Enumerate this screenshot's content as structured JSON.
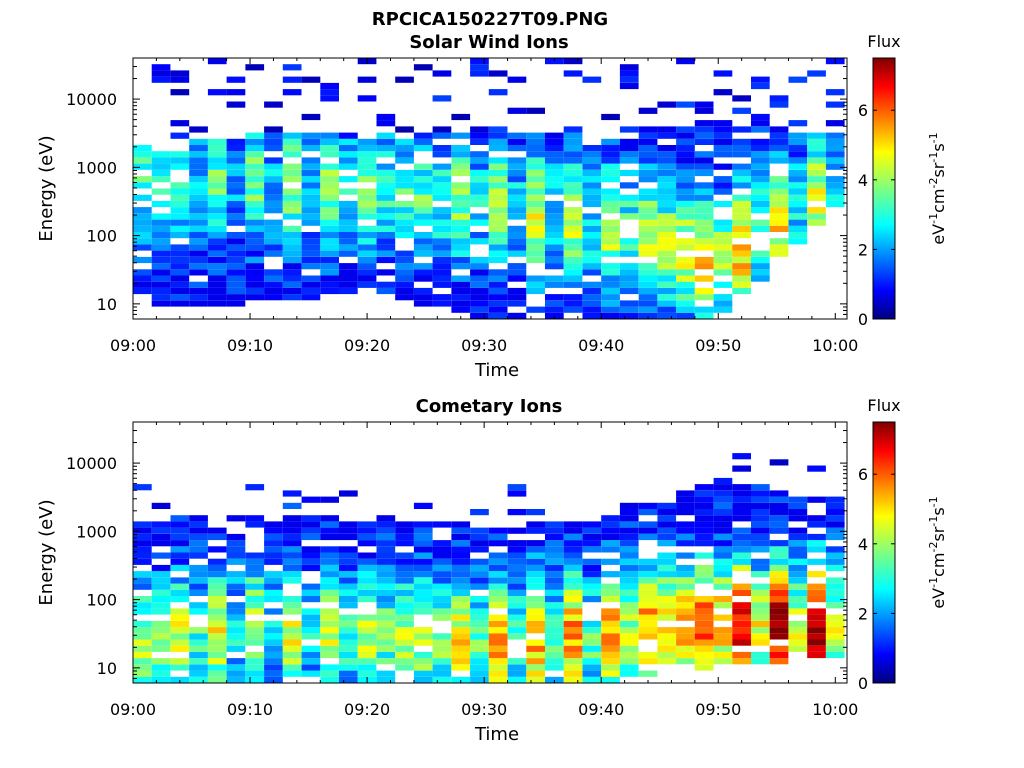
{
  "figure": {
    "filename": "RPCICA150227T09.PNG"
  },
  "chart_data": [
    {
      "type": "heatmap",
      "title": "Solar Wind Ions",
      "xlabel": "Time",
      "ylabel": "Energy (eV)",
      "x_range": [
        "09:00",
        "10:01"
      ],
      "x_ticks": [
        "09:00",
        "09:10",
        "09:20",
        "09:30",
        "09:40",
        "09:50",
        "10:00"
      ],
      "y_scale": "log",
      "y_range": [
        6,
        40000
      ],
      "y_ticks": [
        {
          "value": 10,
          "label": "10"
        },
        {
          "value": 100,
          "label": "100"
        },
        {
          "value": 1000,
          "label": "1000"
        },
        {
          "value": 10000,
          "label": "10000"
        }
      ],
      "colorbar": {
        "label_title": "Flux",
        "unit": "eV-1cm-2sr-1s-1",
        "range": [
          0,
          7.5
        ],
        "ticks": [
          0,
          2,
          4,
          6
        ],
        "colormap": "jet"
      },
      "profile": [
        {
          "t": "09:00",
          "lo": 10,
          "hi": 2000,
          "peak_e": 700,
          "peak_flux": 3.0
        },
        {
          "t": "09:10",
          "lo": 10,
          "hi": 3000,
          "peak_e": 600,
          "peak_flux": 2.8
        },
        {
          "t": "09:20",
          "lo": 15,
          "hi": 3000,
          "peak_e": 500,
          "peak_flux": 3.2
        },
        {
          "t": "09:30",
          "lo": 6,
          "hi": 3000,
          "peak_e": 300,
          "peak_flux": 3.4
        },
        {
          "t": "09:40",
          "lo": 6,
          "hi": 3000,
          "peak_e": 150,
          "peak_flux": 3.6
        },
        {
          "t": "09:50",
          "lo": 6,
          "hi": 5000,
          "peak_e": 40,
          "peak_flux": 5.2
        },
        {
          "t": "10:00",
          "lo": 250,
          "hi": 3000,
          "peak_e": 600,
          "peak_flux": 3.2
        }
      ],
      "note": "sparse low-flux (blue) counts scattered up to ~40000 eV throughout"
    },
    {
      "type": "heatmap",
      "title": "Cometary Ions",
      "xlabel": "Time",
      "ylabel": "Energy (eV)",
      "x_range": [
        "09:00",
        "10:01"
      ],
      "x_ticks": [
        "09:00",
        "09:10",
        "09:20",
        "09:30",
        "09:40",
        "09:50",
        "10:00"
      ],
      "y_scale": "log",
      "y_range": [
        6,
        40000
      ],
      "y_ticks": [
        {
          "value": 10,
          "label": "10"
        },
        {
          "value": 100,
          "label": "100"
        },
        {
          "value": 1000,
          "label": "1000"
        },
        {
          "value": 10000,
          "label": "10000"
        }
      ],
      "colorbar": {
        "label_title": "Flux",
        "unit": "eV-1cm-2sr-1s-1",
        "range": [
          0,
          7.5
        ],
        "ticks": [
          0,
          2,
          4,
          6
        ],
        "colormap": "jet"
      },
      "profile": [
        {
          "t": "09:00",
          "lo": 6,
          "hi": 1500,
          "peak_e": 20,
          "peak_flux": 4.5
        },
        {
          "t": "09:10",
          "lo": 6,
          "hi": 1800,
          "peak_e": 40,
          "peak_flux": 3.6
        },
        {
          "t": "09:20",
          "lo": 6,
          "hi": 1500,
          "peak_e": 30,
          "peak_flux": 3.8
        },
        {
          "t": "09:30",
          "lo": 6,
          "hi": 1500,
          "peak_e": 25,
          "peak_flux": 4.6
        },
        {
          "t": "09:40",
          "lo": 6,
          "hi": 1500,
          "peak_e": 30,
          "peak_flux": 4.8
        },
        {
          "t": "09:50",
          "lo": 10,
          "hi": 6000,
          "peak_e": 45,
          "peak_flux": 6.8
        },
        {
          "t": "10:00",
          "lo": 15,
          "hi": 3000,
          "peak_e": 40,
          "peak_flux": 6.6
        }
      ],
      "note": "bright yellow-red band at 20-100 eV after 09:47"
    }
  ]
}
